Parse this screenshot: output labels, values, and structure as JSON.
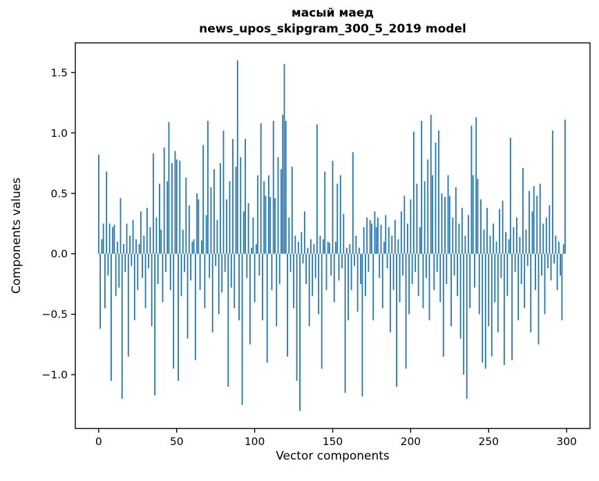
{
  "title": {
    "line1": "масый маед",
    "line2": "news_upos_skipgram_300_5_2019 model"
  },
  "axes": {
    "xlabel": "Vector components",
    "ylabel": "Components values"
  },
  "chart_data": {
    "type": "bar",
    "title": "масый маед — news_upos_skipgram_300_5_2019 model",
    "xlabel": "Vector components",
    "ylabel": "Components values",
    "legend": "none",
    "grid": false,
    "bar_color": "#1f77b4",
    "n_components": 300,
    "xlim": [
      -15,
      315
    ],
    "ylim": [
      -1.445,
      1.745
    ],
    "xticks": [
      0,
      50,
      100,
      150,
      200,
      250,
      300
    ],
    "yticks": [
      -1.0,
      -0.5,
      0.0,
      0.5,
      1.0,
      1.5
    ],
    "values": [
      0.82,
      -0.62,
      0.12,
      0.25,
      -0.45,
      0.68,
      -0.18,
      0.25,
      -1.05,
      0.22,
      0.24,
      -0.35,
      0.1,
      -0.28,
      0.46,
      -1.2,
      0.08,
      -0.15,
      0.25,
      -0.85,
      0.15,
      -0.1,
      0.28,
      -0.55,
      0.12,
      -0.3,
      0.08,
      0.35,
      -0.2,
      0.15,
      -0.45,
      0.38,
      -0.12,
      0.22,
      -0.6,
      0.83,
      -1.17,
      0.3,
      -0.25,
      0.58,
      0.2,
      -0.4,
      0.88,
      -0.15,
      0.6,
      1.09,
      -0.3,
      0.75,
      -0.95,
      0.85,
      0.78,
      -1.05,
      0.77,
      -0.35,
      0.2,
      -0.15,
      0.63,
      -0.7,
      0.4,
      -0.22,
      0.1,
      0.12,
      -0.88,
      0.5,
      0.45,
      -0.3,
      0.11,
      0.9,
      -0.45,
      0.32,
      1.1,
      -0.2,
      0.55,
      -0.65,
      0.7,
      -0.1,
      0.28,
      -0.5,
      0.75,
      -0.32,
      1.02,
      -0.15,
      0.45,
      -1.1,
      0.6,
      -0.28,
      0.95,
      -0.45,
      0.72,
      1.6,
      -0.55,
      0.8,
      -1.25,
      0.35,
      0.95,
      -0.2,
      0.42,
      -0.75,
      0.05,
      0.3,
      -0.4,
      0.08,
      0.65,
      -0.18,
      1.08,
      -0.55,
      0.6,
      0.48,
      -0.9,
      0.65,
      0.47,
      -0.3,
      1.1,
      0.46,
      -0.6,
      0.8,
      -0.25,
      0.7,
      1.15,
      1.57,
      1.1,
      -0.85,
      0.3,
      -0.15,
      0.72,
      -0.45,
      0.15,
      -1.05,
      0.1,
      -1.3,
      0.18,
      -0.08,
      0.35,
      -0.25,
      0.05,
      -0.6,
      0.12,
      -0.35,
      0.08,
      -0.2,
      1.07,
      -0.5,
      0.15,
      -0.95,
      0.12,
      0.68,
      -0.3,
      0.1,
      0.09,
      -0.18,
      0.77,
      -0.4,
      0.1,
      0.58,
      -0.22,
      0.65,
      -0.12,
      0.33,
      -1.15,
      0.05,
      -0.55,
      0.08,
      -0.3,
      0.84,
      -0.1,
      0.15,
      -0.48,
      0.05,
      -0.25,
      -1.18,
      0.22,
      -0.35,
      0.3,
      -0.15,
      0.28,
      0.25,
      -0.55,
      0.35,
      0.22,
      0.3,
      -0.2,
      0.24,
      -0.45,
      0.1,
      0.32,
      -0.12,
      0.22,
      -0.65,
      0.15,
      -0.3,
      0.28,
      -1.1,
      0.12,
      -0.4,
      0.35,
      -0.18,
      0.48,
      -0.95,
      0.25,
      -0.5,
      0.45,
      -0.25,
      1.01,
      -0.15,
      0.58,
      -0.35,
      0.22,
      1.1,
      -0.45,
      0.6,
      -0.2,
      0.78,
      -0.55,
      1.15,
      0.65,
      -0.3,
      0.92,
      -0.15,
      1.02,
      -0.4,
      0.5,
      -0.85,
      0.47,
      -0.25,
      0.65,
      0.48,
      -0.6,
      0.3,
      -0.18,
      0.55,
      -0.35,
      0.25,
      -0.7,
      0.38,
      -1.0,
      0.15,
      -1.2,
      0.32,
      -0.45,
      1.06,
      0.65,
      -0.28,
      1.13,
      0.62,
      -0.5,
      0.45,
      -0.9,
      0.2,
      -0.95,
      0.38,
      -0.6,
      0.15,
      -0.85,
      0.25,
      -0.4,
      0.1,
      -0.65,
      0.37,
      -0.2,
      0.44,
      -0.92,
      0.18,
      -0.35,
      0.12,
      0.96,
      -0.88,
      0.22,
      -0.15,
      0.3,
      -0.55,
      0.14,
      -0.25,
      0.71,
      -0.45,
      0.2,
      -0.1,
      0.52,
      -0.65,
      0.35,
      0.56,
      -0.3,
      0.48,
      -0.75,
      0.58,
      -0.18,
      0.25,
      -0.5,
      0.3,
      -0.12,
      0.4,
      -0.22,
      1.02,
      -0.08,
      0.15,
      -0.3,
      0.1,
      -0.18,
      -0.55,
      0.08,
      1.11
    ]
  }
}
